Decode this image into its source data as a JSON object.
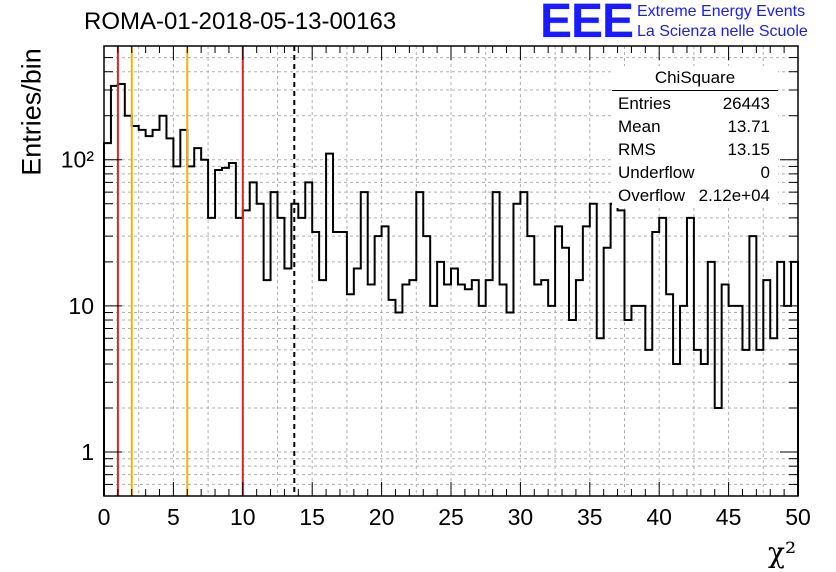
{
  "title": "ROMA-01-2018-05-13-00163",
  "logo": {
    "mark": "EEE",
    "line1": "Extreme Energy Events",
    "line2": "La Scienza nelle Scuole",
    "color": "#1a1aff"
  },
  "stats": {
    "title": "ChiSquare",
    "rows": [
      {
        "name": "Entries",
        "value": "26443"
      },
      {
        "name": "Mean",
        "value": "13.71"
      },
      {
        "name": "RMS",
        "value": "13.15"
      },
      {
        "name": "Underflow",
        "value": "0"
      },
      {
        "name": "Overflow",
        "value": "2.12e+04"
      }
    ]
  },
  "chart_data": {
    "type": "histogram",
    "title": "ROMA-01-2018-05-13-00163",
    "xlabel": "χ²",
    "ylabel": "Entries/bin",
    "xlim": [
      0,
      50
    ],
    "ylim": [
      0.5,
      600
    ],
    "yscale": "log",
    "grid": true,
    "bin_width": 0.5,
    "x_ticks": [
      "0",
      "5",
      "10",
      "15",
      "20",
      "25",
      "30",
      "35",
      "40",
      "45",
      "50"
    ],
    "y_ticks": [
      "1",
      "10",
      "10²"
    ],
    "counts": [
      130,
      320,
      330,
      200,
      170,
      160,
      145,
      160,
      200,
      140,
      90,
      160,
      90,
      120,
      100,
      40,
      85,
      88,
      95,
      40,
      45,
      70,
      50,
      15,
      60,
      40,
      18,
      50,
      40,
      70,
      32,
      15,
      110,
      32,
      32,
      12,
      18,
      60,
      14,
      30,
      35,
      11,
      9,
      14,
      15,
      60,
      30,
      10,
      20,
      14,
      18,
      14,
      13,
      15,
      10,
      15,
      60,
      14,
      9,
      50,
      60,
      30,
      14,
      15,
      10,
      35,
      25,
      8,
      15,
      35,
      50,
      6,
      25,
      50,
      45,
      8,
      10,
      10,
      5,
      32,
      40,
      12,
      4,
      10,
      40,
      5,
      4,
      20,
      2,
      14,
      10,
      10,
      5,
      30,
      5,
      15,
      6,
      20,
      10,
      20
    ],
    "reference_lines": [
      {
        "x": 1,
        "color": "#dd2222",
        "style": "solid"
      },
      {
        "x": 2,
        "color": "#f0b400",
        "style": "solid"
      },
      {
        "x": 6,
        "color": "#f0b400",
        "style": "solid"
      },
      {
        "x": 10,
        "color": "#dd2222",
        "style": "solid"
      },
      {
        "x": 13.71,
        "color": "#000000",
        "style": "dashed"
      }
    ]
  }
}
